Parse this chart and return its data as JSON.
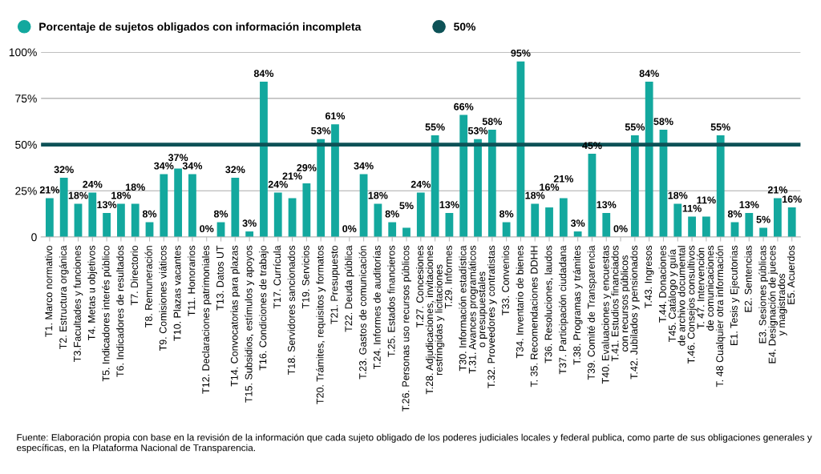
{
  "chart_data": {
    "type": "bar",
    "categories": [
      "T1. Marco normativo",
      "T2. Estructura orgánica",
      "T3.Facultades y funciones",
      "T4. Metas u objetivos",
      "T5. Indicadores interés público",
      "T6. Indicadores de resultados",
      "T7. Directorio",
      "T8. Remuneración",
      "T9. Comisiones viáticos",
      "T10. Plazas vacantes",
      "T11. Honorarios",
      "T12. Declaraciones patrimoniales",
      "T13. Datos UT",
      "T14. Convocatorias para plazas",
      "T15. Subsidios, estímulos y apoyos",
      "T16. Condiciones de trabajo",
      "T17. Currícula",
      "T18. Servidores sancionados",
      "T19. Servicios",
      "T20. Trámites, requisitos y formatos",
      "T21. Presupuesto",
      "T22. Deuda pública",
      "T.23. Gastos de comunicación",
      "T.24. Informes de auditorías",
      "T.25. Estados financieros",
      "T.26. Personas uso recursos públicos",
      "T.27. Concesiones",
      "T.28. Adjudicaciones, invitaciones\nrestringidas y licitaciones",
      "T.29. Informes",
      "T30. Información estadística",
      "T.31. Avances programáticos\no presupuestales",
      "T.32. Proveedores y contratistas",
      "T33. Convenios",
      "T34. Inventario de bienes",
      "T. 35. Recomendaciones DDHH",
      "T36. Resoluciones, laudos",
      "T37. Participación ciudadana",
      "T.38. Programas y trámites",
      "T39. Comité de Transparencia",
      "T40. Evaluaciones y encuestas",
      "T.41. Estudios financiados\ncon recursos públicos",
      "T.42. Jubilados y pensionados",
      "T.43. Ingresos",
      "T.44. Donaciones",
      "T45. Catálogo y guía\nde archivo documental",
      "T.46. Consejos consultivos",
      "T. 47. Intervención\nde comunicaciones",
      "T. 48 Cualquier otra información",
      "E1. Tesis y Ejecutorias",
      "E2. Sentencias",
      "E3. Sesiones públicas",
      "E4. Designación de jueces\ny magistrados",
      "E5. Acuerdos"
    ],
    "series": [
      {
        "name": "Porcentaje de sujetos obligados con información incompleta",
        "color": "#13a89e",
        "values": [
          21,
          32,
          18,
          24,
          13,
          18,
          18,
          8,
          34,
          37,
          34,
          0,
          8,
          32,
          3,
          84,
          24,
          21,
          29,
          53,
          61,
          0,
          34,
          18,
          8,
          5,
          24,
          55,
          13,
          66,
          53,
          58,
          8,
          95,
          18,
          16,
          21,
          3,
          45,
          13,
          0,
          55,
          84,
          58,
          18,
          11,
          11,
          55,
          8,
          13,
          5,
          21,
          16
        ]
      }
    ],
    "value_labels": [
      "21%",
      "32%",
      "18%",
      "24%",
      "13%",
      "18%",
      "18%",
      "8%",
      "34%",
      "37%",
      "34%",
      "0%",
      "8%",
      "32%",
      "3%",
      "84%",
      "24%",
      "21%",
      "29%",
      "53%",
      "61%",
      "0%",
      "34%",
      "18%",
      "8%",
      "5%",
      "24%",
      "55%",
      "13%",
      "66%",
      "53%",
      "58%",
      "8%",
      "95%",
      "18%",
      "16%",
      "21%",
      "3%",
      "45%",
      "13%",
      "0%",
      "55%",
      "84%",
      "58%",
      "18%",
      "11%",
      "11%",
      "55%",
      "8%",
      "13%",
      "5%",
      "21%",
      "16%"
    ],
    "ylim": [
      0,
      100
    ],
    "yticks": [
      {
        "value": 0,
        "label": "0"
      },
      {
        "value": 25,
        "label": "25%"
      },
      {
        "value": 50,
        "label": "50%"
      },
      {
        "value": 75,
        "label": "75%"
      },
      {
        "value": 100,
        "label": "100%"
      }
    ],
    "ref_lines": [
      {
        "axis": "y",
        "value": 50,
        "label": "50%",
        "color": "#0d5257"
      }
    ],
    "grid": "y",
    "legend": "top left",
    "annotations": [
      "Fuente: Elaboración propia con base en la revisión de la información que cada sujeto obligado de los poderes judiciales locales y federal publica, como parte de sus obligaciones generales y específicas, en la Plataforma Nacional de Transparencia."
    ]
  }
}
